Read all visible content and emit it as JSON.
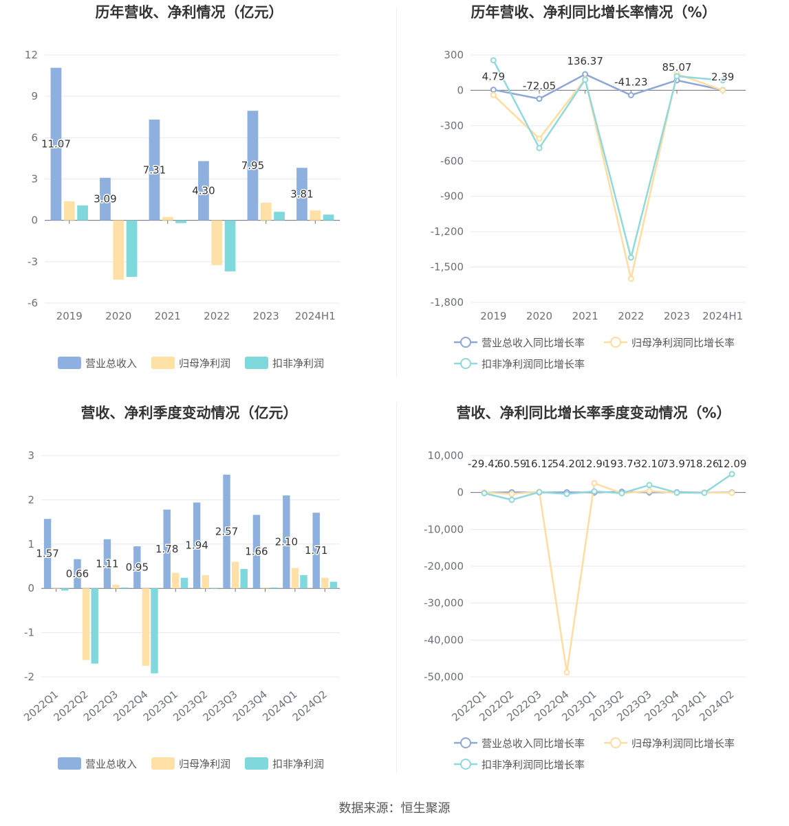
{
  "colors": {
    "revenue": "#8eb0de",
    "net_profit": "#ffe0a6",
    "deducted_profit": "#7fd8db",
    "revenue_line": "#8ea6d6",
    "net_line": "#ffdca0",
    "ded_line": "#8fd8dc"
  },
  "source": "数据来源：恒生聚源",
  "chart_data": [
    {
      "id": "annual-bar",
      "type": "bar",
      "title": "历年营收、净利情况（亿元）",
      "categories": [
        "2019",
        "2020",
        "2021",
        "2022",
        "2023",
        "2024H1"
      ],
      "ylim": [
        -6,
        12
      ],
      "yticks": [
        "12",
        "9",
        "6",
        "3",
        "0",
        "-3",
        "-6"
      ],
      "ytick_values": [
        12,
        9,
        6,
        3,
        0,
        -3,
        -6
      ],
      "series": [
        {
          "name": "营业总收入",
          "values": [
            11.07,
            3.09,
            7.31,
            4.3,
            7.95,
            3.81
          ],
          "labels": [
            "11.07",
            "3.09",
            "7.31",
            "4.30",
            "7.95",
            "3.81"
          ]
        },
        {
          "name": "归母净利润",
          "values": [
            1.38,
            -4.3,
            0.25,
            -3.25,
            1.28,
            0.72
          ]
        },
        {
          "name": "扣非净利润",
          "values": [
            1.08,
            -4.1,
            -0.2,
            -3.7,
            0.62,
            0.42
          ]
        }
      ],
      "legend_position": "bottom"
    },
    {
      "id": "annual-line",
      "type": "line",
      "title": "历年营收、净利同比增长率情况（%）",
      "categories": [
        "2019",
        "2020",
        "2021",
        "2022",
        "2023",
        "2024H1"
      ],
      "ylim": [
        -1800,
        300
      ],
      "yticks": [
        "300",
        "0",
        "-300",
        "-600",
        "-900",
        "-1,200",
        "-1,500",
        "-1,800"
      ],
      "ytick_values": [
        300,
        0,
        -300,
        -600,
        -900,
        -1200,
        -1500,
        -1800
      ],
      "series": [
        {
          "name": "营业总收入同比增长率",
          "values": [
            4.79,
            -72.05,
            136.37,
            -41.23,
            85.07,
            2.39
          ],
          "labels": [
            "4.79",
            "-72.05",
            "136.37",
            "-41.23",
            "85.07",
            "2.39"
          ]
        },
        {
          "name": "归母净利润同比增长率",
          "values": [
            -40,
            -410,
            95,
            -1600,
            140,
            0
          ]
        },
        {
          "name": "扣非净利润同比增长率",
          "values": [
            255,
            -490,
            90,
            -1420,
            120,
            85
          ]
        }
      ],
      "legend_position": "bottom"
    },
    {
      "id": "quarter-bar",
      "type": "bar",
      "title": "营收、净利季度变动情况（亿元）",
      "categories": [
        "2022Q1",
        "2022Q2",
        "2022Q3",
        "2022Q4",
        "2023Q1",
        "2023Q2",
        "2023Q3",
        "2023Q4",
        "2024Q1",
        "2024Q2"
      ],
      "ylim": [
        -2,
        3
      ],
      "yticks": [
        "3",
        "2",
        "1",
        "0",
        "-1",
        "-2"
      ],
      "ytick_values": [
        3,
        2,
        1,
        0,
        -1,
        -2
      ],
      "series": [
        {
          "name": "营业总收入",
          "values": [
            1.57,
            0.66,
            1.11,
            0.95,
            1.78,
            1.94,
            2.57,
            1.66,
            2.1,
            1.71
          ],
          "labels": [
            "1.57",
            "0.66",
            "1.11",
            "0.95",
            "1.78",
            "1.94",
            "2.57",
            "1.66",
            "2.10",
            "1.71"
          ]
        },
        {
          "name": "归母净利润",
          "values": [
            0.0,
            -1.62,
            0.08,
            -1.75,
            0.35,
            0.3,
            0.6,
            0.02,
            0.46,
            0.24
          ]
        },
        {
          "name": "扣非净利润",
          "values": [
            -0.05,
            -1.7,
            0.02,
            -1.92,
            0.24,
            0.0,
            0.44,
            0.02,
            0.3,
            0.15
          ]
        }
      ],
      "legend_position": "bottom"
    },
    {
      "id": "quarter-line",
      "type": "line",
      "title": "营收、净利同比增长率季度变动情况（%）",
      "categories": [
        "2022Q1",
        "2022Q2",
        "2022Q3",
        "2022Q4",
        "2023Q1",
        "2023Q2",
        "2023Q3",
        "2023Q4",
        "2024Q1",
        "2024Q2"
      ],
      "ylim": [
        -50000,
        10000
      ],
      "yticks": [
        "10,000",
        "0",
        "-10,000",
        "-20,000",
        "-30,000",
        "-40,000",
        "-50,000"
      ],
      "ytick_values": [
        10000,
        0,
        -10000,
        -20000,
        -30000,
        -40000,
        -50000
      ],
      "series": [
        {
          "name": "营业总收入同比增长率",
          "values": [
            -29.42,
            60.59,
            16.12,
            54.2,
            12.9,
            193.76,
            32.1,
            73.97,
            18.26,
            12.09
          ],
          "labels": [
            "-29.42",
            "60.59",
            "16.12",
            "54.20",
            "12.90",
            "193.76",
            "32.10",
            "73.97",
            "18.26",
            "12.09"
          ]
        },
        {
          "name": "归母净利润同比增长率",
          "values": [
            0,
            -400,
            200,
            -48800,
            2500,
            -200,
            400,
            -100,
            0,
            -100
          ]
        },
        {
          "name": "扣非净利润同比增长率",
          "values": [
            -200,
            -2000,
            100,
            -400,
            300,
            -200,
            2000,
            -50,
            -100,
            5000
          ]
        }
      ],
      "legend_position": "bottom"
    }
  ]
}
